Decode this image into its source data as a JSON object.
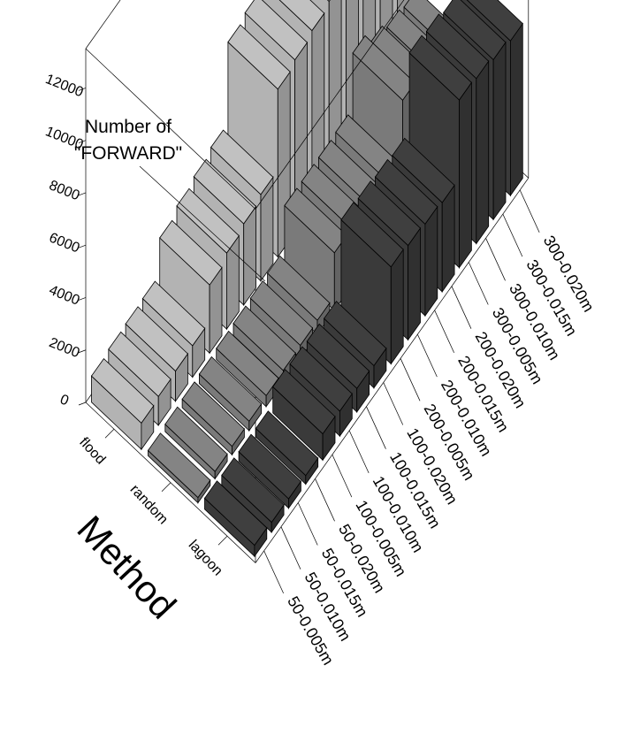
{
  "chart_data": {
    "type": "bar3d",
    "zlabel_lines": [
      "Number of",
      "\"FORWARD\""
    ],
    "ylabel": "Method",
    "z_ticks": [
      0,
      2000,
      4000,
      6000,
      8000,
      10000,
      12000
    ],
    "zlim": [
      0,
      13500
    ],
    "methods": [
      "flood",
      "random",
      "lagoon"
    ],
    "categories": [
      "50-0.005m",
      "50-0.010m",
      "50-0.015m",
      "50-0.020m",
      "100-0.005m",
      "100-0.010m",
      "100-0.015m",
      "100-0.020m",
      "200-0.005m",
      "200-0.010m",
      "200-0.015m",
      "200-0.020m",
      "300-0.005m",
      "300-0.010m",
      "300-0.015m",
      "300-0.020m"
    ],
    "series": [
      {
        "name": "flood",
        "color": "#b3b3b3",
        "values": [
          1000,
          1100,
          1150,
          1200,
          2600,
          2900,
          3100,
          3300,
          6400,
          6600,
          6800,
          7000,
          12000,
          12400,
          12700,
          13000
        ]
      },
      {
        "name": "random",
        "color": "#7a7a7a",
        "values": [
          200,
          280,
          320,
          360,
          420,
          460,
          500,
          540,
          2200,
          2200,
          2200,
          2250,
          4350,
          3800,
          3500,
          3350
        ]
      },
      {
        "name": "lagoon",
        "color": "#3a3a3a",
        "values": [
          420,
          380,
          360,
          330,
          1000,
          950,
          900,
          850,
          3700,
          3600,
          3500,
          3400,
          6400,
          6300,
          6100,
          5900
        ]
      }
    ]
  }
}
